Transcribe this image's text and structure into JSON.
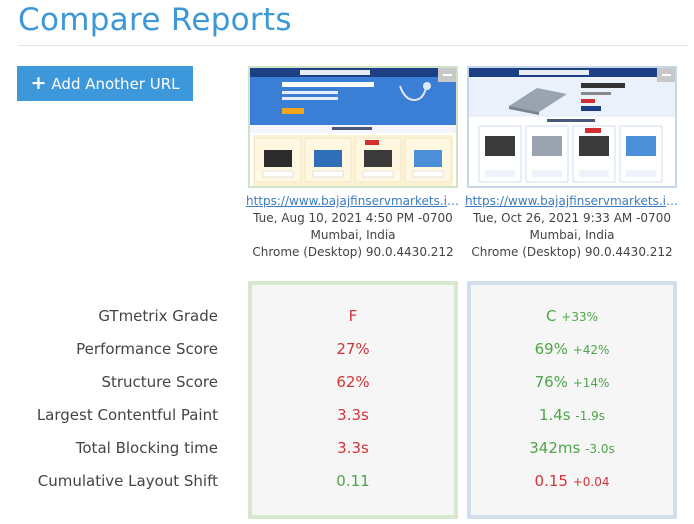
{
  "page": {
    "title": "Compare Reports"
  },
  "add_button": {
    "label": "Add Another URL"
  },
  "reports": [
    {
      "url": "https://www.bajajfinservmarkets.in/...",
      "date": "Tue, Aug 10, 2021 4:50 PM -0700",
      "location": "Mumbai, India",
      "browser": "Chrome (Desktop) 90.0.4430.212",
      "accent": "#cfe3c8"
    },
    {
      "url": "https://www.bajajfinservmarkets.in/...",
      "date": "Tue, Oct 26, 2021 9:33 AM -0700",
      "location": "Mumbai, India",
      "browser": "Chrome (Desktop) 90.0.4430.212",
      "accent": "#c7d6e6"
    }
  ],
  "metrics": [
    {
      "label": "GTmetrix Grade"
    },
    {
      "label": "Performance Score"
    },
    {
      "label": "Structure Score"
    },
    {
      "label": "Largest Contentful Paint"
    },
    {
      "label": "Total Blocking time"
    },
    {
      "label": "Cumulative Layout Shift"
    }
  ],
  "values": {
    "r1": [
      "F",
      "27%",
      "62%",
      "3.3s",
      "3.3s",
      "0.11"
    ],
    "r2": [
      {
        "value": "C",
        "delta": "+33%"
      },
      {
        "value": "69%",
        "delta": "+42%"
      },
      {
        "value": "76%",
        "delta": "+14%"
      },
      {
        "value": "1.4s",
        "delta": "-1.9s"
      },
      {
        "value": "342ms",
        "delta": "-3.0s"
      },
      {
        "value": "0.15",
        "delta": "+0.04"
      }
    ]
  },
  "colors": {
    "title": "#3c98d8",
    "button": "#3d98db",
    "bad": "#d13438",
    "good": "#4fa64a"
  }
}
